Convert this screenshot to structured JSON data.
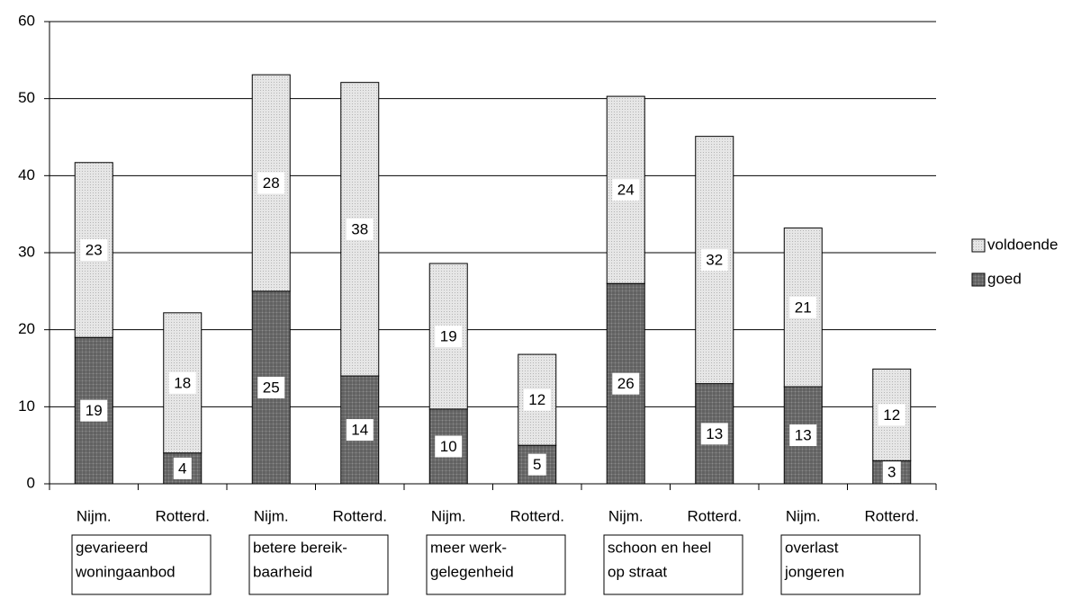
{
  "chart_data": {
    "type": "stacked_bar",
    "categories": [
      "Nijm.",
      "Rotterd.",
      "Nijm.",
      "Rotterd.",
      "Nijm.",
      "Rotterd.",
      "Nijm.",
      "Rotterd.",
      "Nijm.",
      "Rotterd."
    ],
    "groups": [
      {
        "lines": [
          "gevarieerd",
          "woningaanbod"
        ]
      },
      {
        "lines": [
          "betere bereik-",
          "baarheid"
        ]
      },
      {
        "lines": [
          "meer werk-",
          "gelegenheid"
        ]
      },
      {
        "lines": [
          "schoon en heel",
          "op straat"
        ]
      },
      {
        "lines": [
          "overlast",
          "jongeren"
        ]
      }
    ],
    "series": [
      {
        "name": "goed",
        "color": "#8c8c8c",
        "pattern": "crosshatch",
        "values": [
          19,
          4,
          25,
          14,
          9.7,
          5,
          26,
          13,
          12.6,
          3
        ],
        "value_labels": [
          "19",
          "4",
          "25",
          "14",
          "10",
          "5",
          "26",
          "13",
          "13",
          "3"
        ]
      },
      {
        "name": "voldoende",
        "color": "#e6e6e6",
        "pattern": "dots",
        "values": [
          22.7,
          18.2,
          28.1,
          38.1,
          18.9,
          11.8,
          24.3,
          32.1,
          20.6,
          11.9
        ],
        "value_labels": [
          "23",
          "18",
          "28",
          "38",
          "19",
          "12",
          "24",
          "32",
          "21",
          "12"
        ]
      }
    ],
    "ylim": [
      0,
      60
    ],
    "yticks": [
      0,
      10,
      20,
      30,
      40,
      50,
      60
    ],
    "grid": true,
    "legend": "right"
  }
}
